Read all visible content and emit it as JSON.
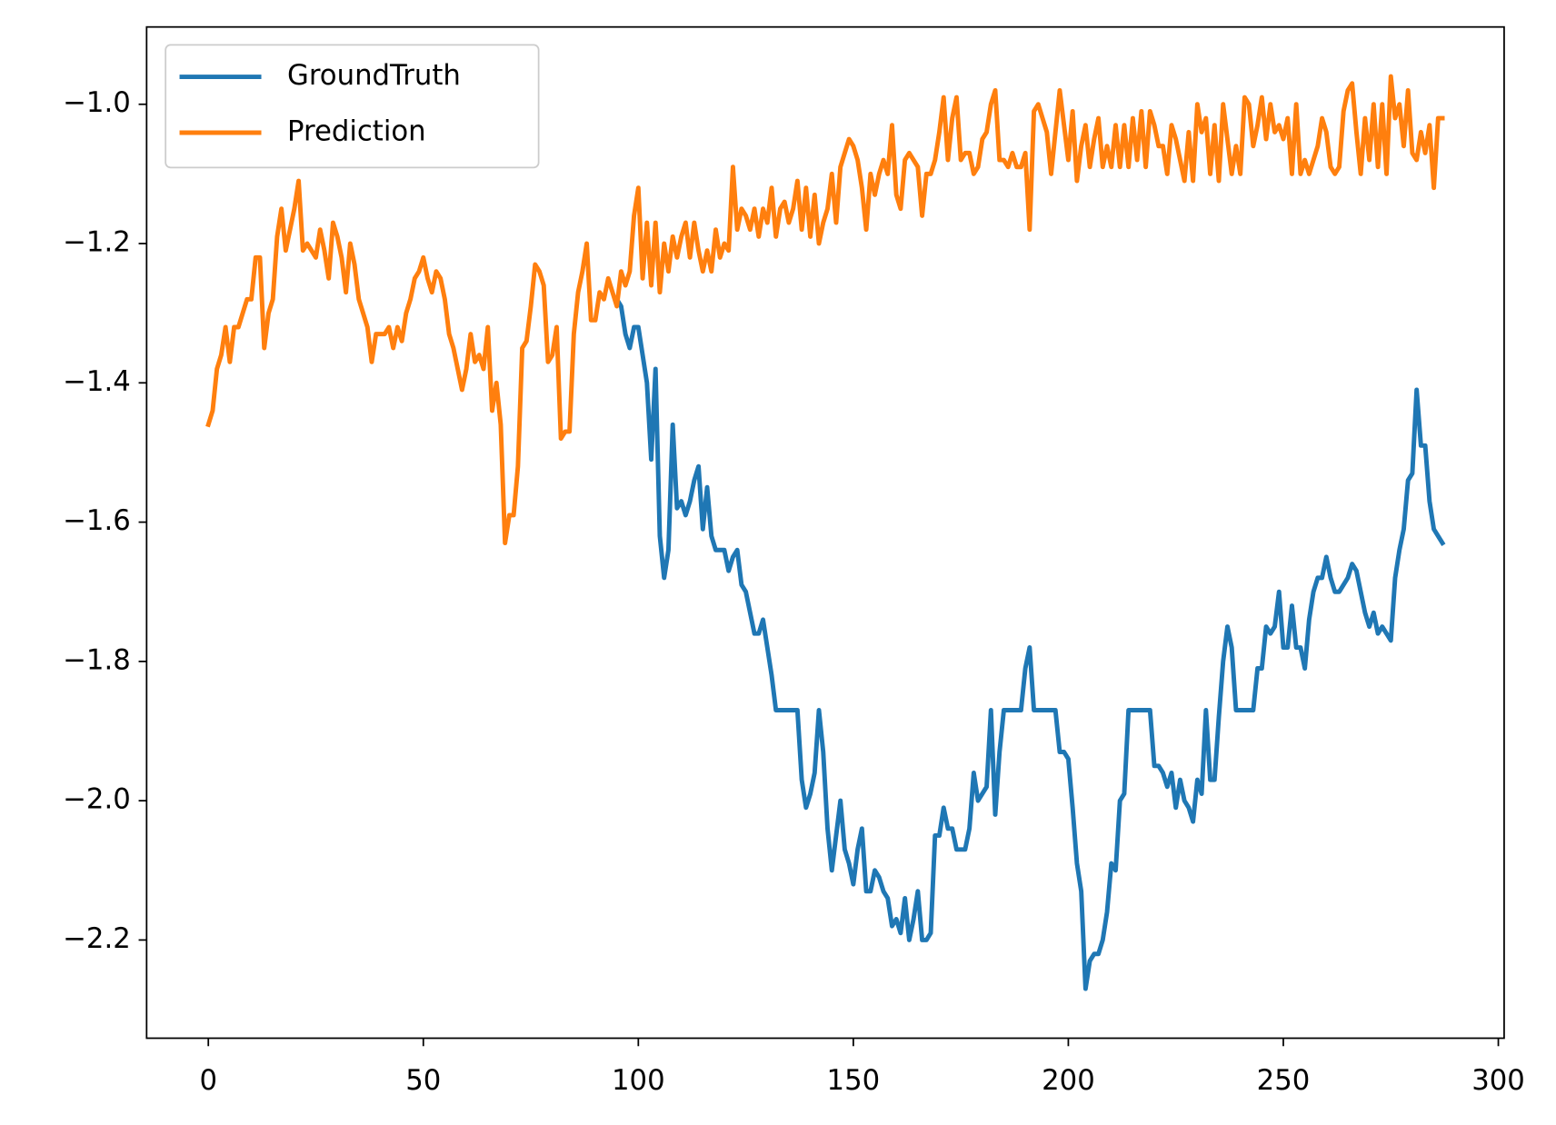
{
  "chart_data": {
    "type": "line",
    "x": [
      0,
      1,
      2,
      3,
      4,
      5,
      6,
      7,
      8,
      9,
      10,
      11,
      12,
      13,
      14,
      15,
      16,
      17,
      18,
      19,
      20,
      21,
      22,
      23,
      24,
      25,
      26,
      27,
      28,
      29,
      30,
      31,
      32,
      33,
      34,
      35,
      36,
      37,
      38,
      39,
      40,
      41,
      42,
      43,
      44,
      45,
      46,
      47,
      48,
      49,
      50,
      51,
      52,
      53,
      54,
      55,
      56,
      57,
      58,
      59,
      60,
      61,
      62,
      63,
      64,
      65,
      66,
      67,
      68,
      69,
      70,
      71,
      72,
      73,
      74,
      75,
      76,
      77,
      78,
      79,
      80,
      81,
      82,
      83,
      84,
      85,
      86,
      87,
      88,
      89,
      90,
      91,
      92,
      93,
      94,
      95,
      96,
      97,
      98,
      99,
      100,
      101,
      102,
      103,
      104,
      105,
      106,
      107,
      108,
      109,
      110,
      111,
      112,
      113,
      114,
      115,
      116,
      117,
      118,
      119,
      120,
      121,
      122,
      123,
      124,
      125,
      126,
      127,
      128,
      129,
      130,
      131,
      132,
      133,
      134,
      135,
      136,
      137,
      138,
      139,
      140,
      141,
      142,
      143,
      144,
      145,
      146,
      147,
      148,
      149,
      150,
      151,
      152,
      153,
      154,
      155,
      156,
      157,
      158,
      159,
      160,
      161,
      162,
      163,
      164,
      165,
      166,
      167,
      168,
      169,
      170,
      171,
      172,
      173,
      174,
      175,
      176,
      177,
      178,
      179,
      180,
      181,
      182,
      183,
      184,
      185,
      186,
      187,
      188,
      189,
      190,
      191,
      192,
      193,
      194,
      195,
      196,
      197,
      198,
      199,
      200,
      201,
      202,
      203,
      204,
      205,
      206,
      207,
      208,
      209,
      210,
      211,
      212,
      213,
      214,
      215,
      216,
      217,
      218,
      219,
      220,
      221,
      222,
      223,
      224,
      225,
      226,
      227,
      228,
      229,
      230,
      231,
      232,
      233,
      234,
      235,
      236,
      237,
      238,
      239,
      240,
      241,
      242,
      243,
      244,
      245,
      246,
      247,
      248,
      249,
      250,
      251,
      252,
      253,
      254,
      255,
      256,
      257,
      258,
      259,
      260,
      261,
      262,
      263,
      264,
      265,
      266,
      267,
      268,
      269,
      270,
      271,
      272,
      273,
      274,
      275,
      276,
      277,
      278,
      279,
      280,
      281,
      282,
      283,
      284,
      285,
      286,
      287
    ],
    "series": [
      {
        "name": "GroundTruth",
        "color": "#1f77b4",
        "values": [
          null,
          null,
          null,
          null,
          null,
          null,
          null,
          null,
          null,
          null,
          null,
          null,
          null,
          null,
          null,
          null,
          null,
          null,
          null,
          null,
          null,
          null,
          null,
          null,
          null,
          null,
          null,
          null,
          null,
          null,
          null,
          null,
          null,
          null,
          null,
          null,
          null,
          null,
          null,
          null,
          null,
          null,
          null,
          null,
          null,
          null,
          null,
          null,
          null,
          null,
          null,
          null,
          null,
          null,
          null,
          null,
          null,
          null,
          null,
          null,
          null,
          null,
          null,
          null,
          null,
          null,
          null,
          null,
          null,
          null,
          null,
          null,
          null,
          null,
          null,
          null,
          null,
          null,
          null,
          null,
          null,
          null,
          null,
          null,
          null,
          null,
          null,
          null,
          null,
          null,
          null,
          null,
          null,
          null,
          null,
          -1.28,
          -1.29,
          -1.33,
          -1.35,
          -1.32,
          -1.32,
          -1.36,
          -1.4,
          -1.51,
          -1.38,
          -1.62,
          -1.68,
          -1.64,
          -1.46,
          -1.58,
          -1.57,
          -1.59,
          -1.57,
          -1.54,
          -1.52,
          -1.61,
          -1.55,
          -1.62,
          -1.64,
          -1.64,
          -1.64,
          -1.67,
          -1.65,
          -1.64,
          -1.69,
          -1.7,
          -1.73,
          -1.76,
          -1.76,
          -1.74,
          -1.78,
          -1.82,
          -1.87,
          -1.87,
          -1.87,
          -1.87,
          -1.87,
          -1.87,
          -1.97,
          -2.01,
          -1.99,
          -1.96,
          -1.87,
          -1.93,
          -2.04,
          -2.1,
          -2.05,
          -2.0,
          -2.07,
          -2.09,
          -2.12,
          -2.07,
          -2.04,
          -2.13,
          -2.13,
          -2.1,
          -2.11,
          -2.13,
          -2.14,
          -2.18,
          -2.17,
          -2.19,
          -2.14,
          -2.2,
          -2.17,
          -2.13,
          -2.2,
          -2.2,
          -2.19,
          -2.05,
          -2.05,
          -2.01,
          -2.04,
          -2.04,
          -2.07,
          -2.07,
          -2.07,
          -2.04,
          -1.96,
          -2.0,
          -1.99,
          -1.98,
          -1.87,
          -2.02,
          -1.93,
          -1.87,
          -1.87,
          -1.87,
          -1.87,
          -1.87,
          -1.81,
          -1.78,
          -1.87,
          -1.87,
          -1.87,
          -1.87,
          -1.87,
          -1.87,
          -1.93,
          -1.93,
          -1.94,
          -2.01,
          -2.09,
          -2.13,
          -2.27,
          -2.23,
          -2.22,
          -2.22,
          -2.2,
          -2.16,
          -2.09,
          -2.1,
          -2.0,
          -1.99,
          -1.87,
          -1.87,
          -1.87,
          -1.87,
          -1.87,
          -1.87,
          -1.95,
          -1.95,
          -1.96,
          -1.98,
          -1.96,
          -2.01,
          -1.97,
          -2.0,
          -2.01,
          -2.03,
          -1.97,
          -1.99,
          -1.87,
          -1.97,
          -1.97,
          -1.88,
          -1.8,
          -1.75,
          -1.78,
          -1.87,
          -1.87,
          -1.87,
          -1.87,
          -1.87,
          -1.81,
          -1.81,
          -1.75,
          -1.76,
          -1.75,
          -1.7,
          -1.78,
          -1.78,
          -1.72,
          -1.78,
          -1.78,
          -1.81,
          -1.74,
          -1.7,
          -1.68,
          -1.68,
          -1.65,
          -1.68,
          -1.7,
          -1.7,
          -1.69,
          -1.68,
          -1.66,
          -1.67,
          -1.7,
          -1.73,
          -1.75,
          -1.73,
          -1.76,
          -1.75,
          -1.76,
          -1.77,
          -1.68,
          -1.64,
          -1.61,
          -1.54,
          -1.53,
          -1.41,
          -1.49,
          -1.49,
          -1.57,
          -1.61,
          -1.62,
          -1.63
        ]
      },
      {
        "name": "Prediction",
        "color": "#ff7f0e",
        "values": [
          -1.46,
          -1.44,
          -1.38,
          -1.36,
          -1.32,
          -1.37,
          -1.32,
          -1.32,
          -1.3,
          -1.28,
          -1.28,
          -1.22,
          -1.22,
          -1.35,
          -1.3,
          -1.28,
          -1.19,
          -1.15,
          -1.21,
          -1.18,
          -1.15,
          -1.11,
          -1.21,
          -1.2,
          -1.21,
          -1.22,
          -1.18,
          -1.21,
          -1.25,
          -1.17,
          -1.19,
          -1.22,
          -1.27,
          -1.2,
          -1.23,
          -1.28,
          -1.3,
          -1.32,
          -1.37,
          -1.33,
          -1.33,
          -1.33,
          -1.32,
          -1.35,
          -1.32,
          -1.34,
          -1.3,
          -1.28,
          -1.25,
          -1.24,
          -1.22,
          -1.25,
          -1.27,
          -1.24,
          -1.25,
          -1.28,
          -1.33,
          -1.35,
          -1.38,
          -1.41,
          -1.38,
          -1.33,
          -1.37,
          -1.36,
          -1.38,
          -1.32,
          -1.44,
          -1.4,
          -1.46,
          -1.63,
          -1.59,
          -1.59,
          -1.52,
          -1.35,
          -1.34,
          -1.29,
          -1.23,
          -1.24,
          -1.26,
          -1.37,
          -1.36,
          -1.32,
          -1.48,
          -1.47,
          -1.47,
          -1.33,
          -1.27,
          -1.24,
          -1.2,
          -1.31,
          -1.31,
          -1.27,
          -1.28,
          -1.25,
          -1.27,
          -1.29,
          -1.24,
          -1.26,
          -1.24,
          -1.16,
          -1.12,
          -1.25,
          -1.17,
          -1.26,
          -1.17,
          -1.27,
          -1.2,
          -1.24,
          -1.19,
          -1.22,
          -1.19,
          -1.17,
          -1.22,
          -1.17,
          -1.21,
          -1.24,
          -1.21,
          -1.24,
          -1.18,
          -1.22,
          -1.2,
          -1.21,
          -1.09,
          -1.18,
          -1.15,
          -1.16,
          -1.18,
          -1.15,
          -1.19,
          -1.15,
          -1.17,
          -1.12,
          -1.19,
          -1.15,
          -1.14,
          -1.17,
          -1.15,
          -1.11,
          -1.18,
          -1.12,
          -1.19,
          -1.13,
          -1.2,
          -1.17,
          -1.15,
          -1.1,
          -1.17,
          -1.09,
          -1.07,
          -1.05,
          -1.06,
          -1.08,
          -1.12,
          -1.18,
          -1.1,
          -1.13,
          -1.1,
          -1.08,
          -1.1,
          -1.03,
          -1.13,
          -1.15,
          -1.08,
          -1.07,
          -1.08,
          -1.09,
          -1.16,
          -1.1,
          -1.1,
          -1.08,
          -1.04,
          -0.99,
          -1.08,
          -1.02,
          -0.99,
          -1.08,
          -1.07,
          -1.07,
          -1.1,
          -1.09,
          -1.05,
          -1.04,
          -1.0,
          -0.98,
          -1.08,
          -1.08,
          -1.09,
          -1.07,
          -1.09,
          -1.09,
          -1.07,
          -1.18,
          -1.01,
          -1.0,
          -1.02,
          -1.04,
          -1.1,
          -1.04,
          -0.98,
          -1.03,
          -1.08,
          -1.01,
          -1.11,
          -1.06,
          -1.03,
          -1.09,
          -1.05,
          -1.02,
          -1.09,
          -1.06,
          -1.09,
          -1.03,
          -1.09,
          -1.03,
          -1.09,
          -1.02,
          -1.08,
          -1.01,
          -1.09,
          -1.01,
          -1.03,
          -1.06,
          -1.06,
          -1.1,
          -1.03,
          -1.05,
          -1.08,
          -1.11,
          -1.04,
          -1.11,
          -1.0,
          -1.04,
          -1.02,
          -1.1,
          -1.03,
          -1.11,
          -1.0,
          -1.05,
          -1.1,
          -1.06,
          -1.1,
          -0.99,
          -1.0,
          -1.06,
          -1.03,
          -0.99,
          -1.05,
          -1.0,
          -1.04,
          -1.03,
          -1.05,
          -1.02,
          -1.1,
          -1.0,
          -1.1,
          -1.08,
          -1.1,
          -1.08,
          -1.06,
          -1.02,
          -1.04,
          -1.09,
          -1.1,
          -1.09,
          -1.01,
          -0.98,
          -0.97,
          -1.04,
          -1.1,
          -1.02,
          -1.08,
          -1.0,
          -1.09,
          -1.0,
          -1.1,
          -0.96,
          -1.02,
          -1.0,
          -1.06,
          -0.98,
          -1.07,
          -1.08,
          -1.04,
          -1.07,
          -1.03,
          -1.12,
          -1.02,
          -1.02
        ]
      }
    ],
    "xlim": [
      -14.35,
      301.35
    ],
    "xticks": [
      0,
      50,
      100,
      150,
      200,
      250,
      300
    ],
    "ylim": [
      -2.341,
      -0.889
    ],
    "yticks": [
      {
        "value": -2.2,
        "label": "−2.2"
      },
      {
        "value": -2.0,
        "label": "−2.0"
      },
      {
        "value": -1.8,
        "label": "−1.8"
      },
      {
        "value": -1.6,
        "label": "−1.6"
      },
      {
        "value": -1.4,
        "label": "−1.4"
      },
      {
        "value": -1.2,
        "label": "−1.2"
      },
      {
        "value": -1.0,
        "label": "−1.0"
      }
    ],
    "legend": "upper left",
    "grid": false
  }
}
